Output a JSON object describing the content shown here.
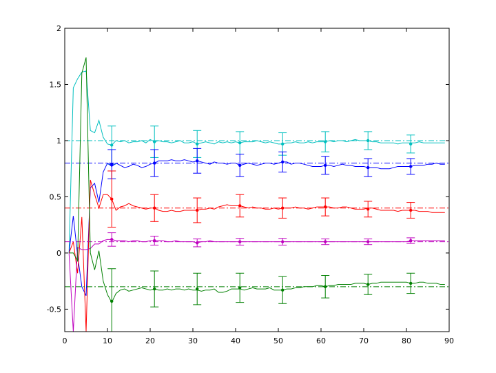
{
  "chart_data": {
    "type": "line",
    "xlim": [
      0,
      90
    ],
    "ylim": [
      -0.7,
      2
    ],
    "xticks": [
      0,
      10,
      20,
      30,
      40,
      50,
      60,
      70,
      80,
      90
    ],
    "yticks": [
      -0.5,
      0,
      0.5,
      1,
      1.5,
      2
    ],
    "xtick_labels": [
      "0",
      "10",
      "20",
      "30",
      "40",
      "50",
      "60",
      "70",
      "80",
      "90"
    ],
    "ytick_labels": [
      "-0.5",
      "0",
      "0.5",
      "1",
      "1.5",
      "2"
    ],
    "grid": false,
    "series": [
      {
        "color": "#00bfbf",
        "reference": 1.0,
        "x": [
          1,
          2,
          3,
          4,
          5,
          6,
          7,
          8,
          9,
          10,
          11,
          12,
          13,
          14,
          15,
          16,
          17,
          18,
          19,
          20,
          21,
          22,
          23,
          24,
          25,
          26,
          27,
          28,
          29,
          30,
          31,
          32,
          33,
          34,
          35,
          36,
          37,
          38,
          39,
          40,
          41,
          42,
          43,
          44,
          45,
          46,
          47,
          48,
          49,
          50,
          51,
          52,
          53,
          54,
          55,
          56,
          57,
          58,
          59,
          60,
          61,
          62,
          63,
          64,
          65,
          66,
          67,
          68,
          69,
          70,
          71,
          72,
          73,
          74,
          75,
          76,
          77,
          78,
          79,
          80,
          81,
          82,
          83,
          84,
          85,
          86,
          87,
          88,
          89
        ],
        "y": [
          0.0,
          1.47,
          1.55,
          1.61,
          1.62,
          1.09,
          1.07,
          1.18,
          1.03,
          0.97,
          0.96,
          1.0,
          0.99,
          1.0,
          0.98,
          0.99,
          0.99,
          1.0,
          0.98,
          1.01,
          0.99,
          1.0,
          0.99,
          0.99,
          0.98,
          0.99,
          1.0,
          0.98,
          0.98,
          0.99,
          0.97,
          0.98,
          0.99,
          0.98,
          0.97,
          0.99,
          0.98,
          0.99,
          0.98,
          0.99,
          0.98,
          0.99,
          0.99,
          0.99,
          1.0,
          0.99,
          0.98,
          0.99,
          0.98,
          0.97,
          0.97,
          0.98,
          0.98,
          0.99,
          0.98,
          0.98,
          0.99,
          0.98,
          0.99,
          0.99,
          0.99,
          1.0,
          0.99,
          1.0,
          1.0,
          0.99,
          1.0,
          1.01,
          1.0,
          1.0,
          1.0,
          0.99,
          0.99,
          0.98,
          0.98,
          0.98,
          0.98,
          0.97,
          0.98,
          0.98,
          0.98,
          0.98,
          0.99,
          0.98,
          0.98,
          0.98,
          0.98,
          0.98,
          0.98
        ],
        "err_x": [
          11,
          21,
          31,
          41,
          51,
          61,
          71,
          81
        ],
        "err_y": [
          0.96,
          0.99,
          0.97,
          0.98,
          0.97,
          0.99,
          1.0,
          0.97
        ],
        "err_half": [
          0.17,
          0.14,
          0.12,
          0.1,
          0.1,
          0.09,
          0.08,
          0.08
        ]
      },
      {
        "color": "#0000ff",
        "reference": 0.8,
        "x": [
          1,
          2,
          3,
          4,
          5,
          6,
          7,
          8,
          9,
          10,
          11,
          12,
          13,
          14,
          15,
          16,
          17,
          18,
          19,
          20,
          21,
          22,
          23,
          24,
          25,
          26,
          27,
          28,
          29,
          30,
          31,
          32,
          33,
          34,
          35,
          36,
          37,
          38,
          39,
          40,
          41,
          42,
          43,
          44,
          45,
          46,
          47,
          48,
          49,
          50,
          51,
          52,
          53,
          54,
          55,
          56,
          57,
          58,
          59,
          60,
          61,
          62,
          63,
          64,
          65,
          66,
          67,
          68,
          69,
          70,
          71,
          72,
          73,
          74,
          75,
          76,
          77,
          78,
          79,
          80,
          81,
          82,
          83,
          84,
          85,
          86,
          87,
          88,
          89
        ],
        "y": [
          0.0,
          0.33,
          -0.02,
          -0.3,
          -0.38,
          0.58,
          0.62,
          0.45,
          0.72,
          0.8,
          0.77,
          0.8,
          0.78,
          0.76,
          0.77,
          0.79,
          0.78,
          0.76,
          0.77,
          0.79,
          0.8,
          0.82,
          0.82,
          0.82,
          0.83,
          0.82,
          0.82,
          0.83,
          0.82,
          0.81,
          0.82,
          0.81,
          0.8,
          0.79,
          0.81,
          0.8,
          0.8,
          0.79,
          0.8,
          0.8,
          0.78,
          0.79,
          0.8,
          0.79,
          0.78,
          0.79,
          0.8,
          0.8,
          0.79,
          0.8,
          0.81,
          0.81,
          0.79,
          0.8,
          0.8,
          0.79,
          0.78,
          0.77,
          0.77,
          0.77,
          0.78,
          0.78,
          0.77,
          0.78,
          0.79,
          0.78,
          0.78,
          0.77,
          0.77,
          0.77,
          0.76,
          0.76,
          0.76,
          0.75,
          0.75,
          0.75,
          0.76,
          0.77,
          0.77,
          0.77,
          0.77,
          0.78,
          0.78,
          0.78,
          0.79,
          0.79,
          0.8,
          0.79,
          0.79
        ],
        "err_x": [
          11,
          21,
          31,
          41,
          51,
          61,
          71,
          81
        ],
        "err_y": [
          0.79,
          0.8,
          0.82,
          0.78,
          0.81,
          0.78,
          0.76,
          0.77
        ],
        "err_half": [
          0.13,
          0.12,
          0.11,
          0.1,
          0.09,
          0.08,
          0.08,
          0.07
        ]
      },
      {
        "color": "#ff0000",
        "reference": 0.4,
        "x": [
          1,
          2,
          3,
          4,
          5,
          6,
          7,
          8,
          9,
          10,
          11,
          12,
          13,
          14,
          15,
          16,
          17,
          18,
          19,
          20,
          21,
          22,
          23,
          24,
          25,
          26,
          27,
          28,
          29,
          30,
          31,
          32,
          33,
          34,
          35,
          36,
          37,
          38,
          39,
          40,
          41,
          42,
          43,
          44,
          45,
          46,
          47,
          48,
          49,
          50,
          51,
          52,
          53,
          54,
          55,
          56,
          57,
          58,
          59,
          60,
          61,
          62,
          63,
          64,
          65,
          66,
          67,
          68,
          69,
          70,
          71,
          72,
          73,
          74,
          75,
          76,
          77,
          78,
          79,
          80,
          81,
          82,
          83,
          84,
          85,
          86,
          87,
          88,
          89
        ],
        "y": [
          0.0,
          0.1,
          -0.18,
          0.32,
          -0.7,
          0.65,
          0.52,
          0.4,
          0.52,
          0.52,
          0.48,
          0.38,
          0.41,
          0.42,
          0.44,
          0.42,
          0.41,
          0.4,
          0.39,
          0.4,
          0.4,
          0.38,
          0.37,
          0.37,
          0.38,
          0.37,
          0.37,
          0.38,
          0.38,
          0.38,
          0.38,
          0.39,
          0.39,
          0.4,
          0.39,
          0.41,
          0.42,
          0.43,
          0.42,
          0.42,
          0.42,
          0.41,
          0.4,
          0.41,
          0.4,
          0.4,
          0.39,
          0.39,
          0.4,
          0.39,
          0.4,
          0.4,
          0.4,
          0.41,
          0.4,
          0.4,
          0.39,
          0.4,
          0.41,
          0.41,
          0.41,
          0.41,
          0.4,
          0.4,
          0.41,
          0.41,
          0.4,
          0.39,
          0.39,
          0.39,
          0.4,
          0.4,
          0.39,
          0.38,
          0.38,
          0.38,
          0.38,
          0.37,
          0.38,
          0.38,
          0.38,
          0.38,
          0.37,
          0.37,
          0.37,
          0.36,
          0.36,
          0.36,
          0.36
        ],
        "err_x": [
          11,
          21,
          31,
          41,
          51,
          61,
          71,
          81
        ],
        "err_y": [
          0.48,
          0.4,
          0.38,
          0.42,
          0.4,
          0.41,
          0.39,
          0.38
        ],
        "err_half": [
          0.25,
          0.12,
          0.11,
          0.1,
          0.09,
          0.08,
          0.07,
          0.07
        ]
      },
      {
        "color": "#bf00bf",
        "reference": 0.1,
        "x": [
          1,
          2,
          3,
          4,
          5,
          6,
          7,
          8,
          9,
          10,
          11,
          12,
          13,
          14,
          15,
          16,
          17,
          18,
          19,
          20,
          21,
          22,
          23,
          24,
          25,
          26,
          27,
          28,
          29,
          30,
          31,
          32,
          33,
          34,
          35,
          36,
          37,
          38,
          39,
          40,
          41,
          42,
          43,
          44,
          45,
          46,
          47,
          48,
          49,
          50,
          51,
          52,
          53,
          54,
          55,
          56,
          57,
          58,
          59,
          60,
          61,
          62,
          63,
          64,
          65,
          66,
          67,
          68,
          69,
          70,
          71,
          72,
          73,
          74,
          75,
          76,
          77,
          78,
          79,
          80,
          81,
          82,
          83,
          84,
          85,
          86,
          87,
          88,
          89
        ],
        "y": [
          0.0,
          -0.7,
          0.05,
          0.03,
          0.03,
          0.04,
          0.08,
          0.08,
          0.11,
          0.12,
          0.12,
          0.11,
          0.11,
          0.11,
          0.1,
          0.11,
          0.11,
          0.1,
          0.1,
          0.11,
          0.11,
          0.11,
          0.11,
          0.1,
          0.1,
          0.11,
          0.1,
          0.1,
          0.1,
          0.1,
          0.09,
          0.1,
          0.1,
          0.11,
          0.1,
          0.1,
          0.1,
          0.1,
          0.1,
          0.1,
          0.1,
          0.1,
          0.1,
          0.1,
          0.1,
          0.1,
          0.1,
          0.1,
          0.1,
          0.1,
          0.1,
          0.1,
          0.1,
          0.1,
          0.1,
          0.1,
          0.1,
          0.1,
          0.1,
          0.1,
          0.1,
          0.1,
          0.1,
          0.1,
          0.1,
          0.1,
          0.1,
          0.1,
          0.1,
          0.1,
          0.1,
          0.1,
          0.1,
          0.1,
          0.1,
          0.1,
          0.1,
          0.1,
          0.1,
          0.1,
          0.11,
          0.11,
          0.11,
          0.11,
          0.11,
          0.11,
          0.11,
          0.11,
          0.11
        ],
        "err_x": [
          11,
          21,
          31,
          41,
          51,
          61,
          71,
          81
        ],
        "err_y": [
          0.12,
          0.11,
          0.09,
          0.1,
          0.1,
          0.1,
          0.1,
          0.11
        ],
        "err_half": [
          0.06,
          0.04,
          0.035,
          0.03,
          0.03,
          0.025,
          0.025,
          0.025
        ]
      },
      {
        "color": "#008000",
        "reference": -0.3,
        "x": [
          1,
          2,
          3,
          4,
          5,
          6,
          7,
          8,
          9,
          10,
          11,
          12,
          13,
          14,
          15,
          16,
          17,
          18,
          19,
          20,
          21,
          22,
          23,
          24,
          25,
          26,
          27,
          28,
          29,
          30,
          31,
          32,
          33,
          34,
          35,
          36,
          37,
          38,
          39,
          40,
          41,
          42,
          43,
          44,
          45,
          46,
          47,
          48,
          49,
          50,
          51,
          52,
          53,
          54,
          55,
          56,
          57,
          58,
          59,
          60,
          61,
          62,
          63,
          64,
          65,
          66,
          67,
          68,
          69,
          70,
          71,
          72,
          73,
          74,
          75,
          76,
          77,
          78,
          79,
          80,
          81,
          82,
          83,
          84,
          85,
          86,
          87,
          88,
          89
        ],
        "y": [
          0.0,
          0.0,
          -0.07,
          1.6,
          1.74,
          0.0,
          -0.15,
          0.02,
          -0.25,
          -0.37,
          -0.44,
          -0.36,
          -0.33,
          -0.32,
          -0.34,
          -0.33,
          -0.32,
          -0.31,
          -0.32,
          -0.33,
          -0.32,
          -0.33,
          -0.33,
          -0.32,
          -0.33,
          -0.32,
          -0.32,
          -0.33,
          -0.32,
          -0.33,
          -0.33,
          -0.34,
          -0.33,
          -0.33,
          -0.32,
          -0.35,
          -0.35,
          -0.34,
          -0.32,
          -0.32,
          -0.32,
          -0.33,
          -0.32,
          -0.31,
          -0.32,
          -0.32,
          -0.32,
          -0.31,
          -0.33,
          -0.33,
          -0.33,
          -0.32,
          -0.32,
          -0.31,
          -0.31,
          -0.3,
          -0.3,
          -0.3,
          -0.29,
          -0.29,
          -0.3,
          -0.29,
          -0.29,
          -0.28,
          -0.28,
          -0.28,
          -0.28,
          -0.27,
          -0.27,
          -0.27,
          -0.28,
          -0.27,
          -0.27,
          -0.26,
          -0.26,
          -0.26,
          -0.26,
          -0.26,
          -0.26,
          -0.26,
          -0.27,
          -0.27,
          -0.26,
          -0.26,
          -0.27,
          -0.27,
          -0.27,
          -0.28,
          -0.28
        ],
        "err_x": [
          11,
          21,
          31,
          41,
          51,
          61,
          71,
          81
        ],
        "err_y": [
          -0.43,
          -0.32,
          -0.32,
          -0.31,
          -0.33,
          -0.3,
          -0.28,
          -0.27
        ],
        "err_half": [
          0.29,
          0.16,
          0.14,
          0.13,
          0.12,
          0.1,
          0.09,
          0.09
        ]
      }
    ]
  }
}
